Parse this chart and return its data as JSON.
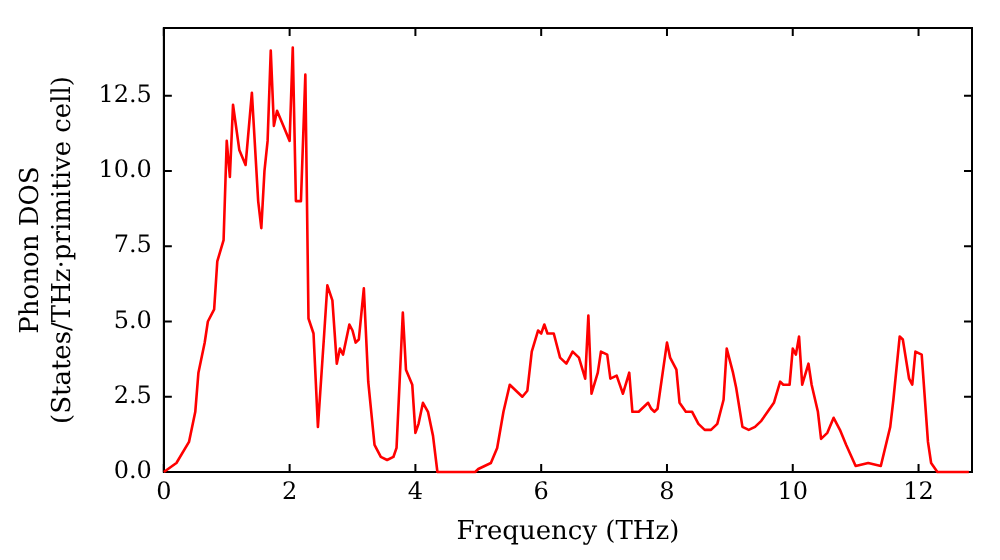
{
  "chart_data": {
    "type": "line",
    "xlabel": "Frequency (THz)",
    "ylabel": "Phonon DOS\n(States/THz·primitive cell)",
    "xlim": [
      0,
      12.85
    ],
    "ylim": [
      0,
      14.75
    ],
    "xticks": [
      0,
      2,
      4,
      6,
      8,
      10,
      12
    ],
    "yticks": [
      {
        "value": 0,
        "label": "0.0"
      },
      {
        "value": 2.5,
        "label": "2.5"
      },
      {
        "value": 5,
        "label": "5.0"
      },
      {
        "value": 7.5,
        "label": "7.5"
      },
      {
        "value": 10,
        "label": "10.0"
      },
      {
        "value": 12.5,
        "label": "12.5"
      }
    ],
    "grid": false,
    "legend": false,
    "marker": "none",
    "line_style": "solid",
    "series": [
      {
        "color": "#ff0000",
        "x": [
          0,
          0.2,
          0.4,
          0.5,
          0.55,
          0.65,
          0.7,
          0.8,
          0.85,
          0.95,
          1.0,
          1.05,
          1.1,
          1.2,
          1.3,
          1.4,
          1.5,
          1.55,
          1.6,
          1.65,
          1.7,
          1.75,
          1.8,
          1.9,
          2.0,
          2.05,
          2.1,
          2.18,
          2.25,
          2.3,
          2.38,
          2.45,
          2.55,
          2.6,
          2.68,
          2.75,
          2.8,
          2.85,
          2.95,
          3.0,
          3.05,
          3.1,
          3.18,
          3.25,
          3.35,
          3.45,
          3.55,
          3.65,
          3.7,
          3.8,
          3.85,
          3.95,
          4.0,
          4.05,
          4.12,
          4.2,
          4.28,
          4.35,
          4.6,
          4.95,
          5.0,
          5.2,
          5.3,
          5.4,
          5.5,
          5.6,
          5.7,
          5.78,
          5.85,
          5.95,
          6.0,
          6.05,
          6.1,
          6.2,
          6.3,
          6.4,
          6.5,
          6.6,
          6.7,
          6.75,
          6.8,
          6.9,
          6.95,
          7.05,
          7.1,
          7.2,
          7.3,
          7.4,
          7.45,
          7.55,
          7.7,
          7.75,
          7.8,
          7.85,
          8.0,
          8.05,
          8.15,
          8.2,
          8.3,
          8.4,
          8.5,
          8.6,
          8.7,
          8.8,
          8.9,
          8.95,
          9.05,
          9.1,
          9.2,
          9.3,
          9.4,
          9.5,
          9.6,
          9.7,
          9.8,
          9.85,
          9.95,
          10.0,
          10.05,
          10.1,
          10.15,
          10.25,
          10.3,
          10.4,
          10.45,
          10.55,
          10.65,
          10.75,
          10.85,
          11.0,
          11.2,
          11.4,
          11.55,
          11.6,
          11.7,
          11.75,
          11.85,
          11.9,
          11.95,
          12.05,
          12.15,
          12.2,
          12.3,
          12.8
        ],
        "values": [
          0,
          0.3,
          1.0,
          2.0,
          3.3,
          4.3,
          5.0,
          5.4,
          7.0,
          7.7,
          11.0,
          9.8,
          12.2,
          10.7,
          10.2,
          12.6,
          9.0,
          8.1,
          10.0,
          11.0,
          14.0,
          11.5,
          12.0,
          11.5,
          11.0,
          14.1,
          9.0,
          9.0,
          13.2,
          5.1,
          4.6,
          1.5,
          4.6,
          6.2,
          5.7,
          3.6,
          4.1,
          3.9,
          4.9,
          4.7,
          4.3,
          4.4,
          6.1,
          3.0,
          0.9,
          0.5,
          0.4,
          0.5,
          0.8,
          5.3,
          3.4,
          2.9,
          1.3,
          1.6,
          2.3,
          2.0,
          1.2,
          0,
          0,
          0,
          0.1,
          0.3,
          0.8,
          2.0,
          2.9,
          2.7,
          2.5,
          2.7,
          4.0,
          4.7,
          4.6,
          4.9,
          4.6,
          4.6,
          3.8,
          3.6,
          4.0,
          3.8,
          3.1,
          5.2,
          2.6,
          3.3,
          4.0,
          3.9,
          3.1,
          3.2,
          2.6,
          3.3,
          2.0,
          2.0,
          2.3,
          2.1,
          2.0,
          2.1,
          4.3,
          3.8,
          3.4,
          2.3,
          2.0,
          2.0,
          1.6,
          1.4,
          1.4,
          1.6,
          2.4,
          4.1,
          3.3,
          2.8,
          1.5,
          1.4,
          1.5,
          1.7,
          2.0,
          2.3,
          3.0,
          2.9,
          2.9,
          4.1,
          3.9,
          4.5,
          2.9,
          3.6,
          2.9,
          2.0,
          1.1,
          1.3,
          1.8,
          1.4,
          0.9,
          0.2,
          0.3,
          0.2,
          1.5,
          2.4,
          4.5,
          4.4,
          3.1,
          2.9,
          4.0,
          3.9,
          1.0,
          0.3,
          0,
          0
        ]
      }
    ]
  }
}
